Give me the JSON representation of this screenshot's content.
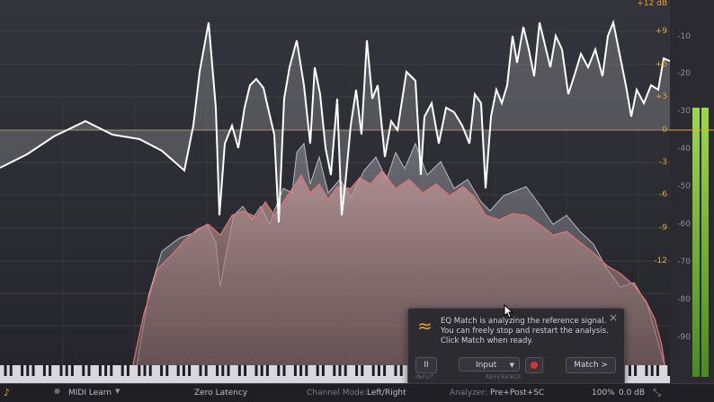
{
  "eq_scale": [
    "+12 dB",
    "+9",
    "+6",
    "+3",
    "0",
    "-3",
    "-6",
    "-9",
    "-12"
  ],
  "spectrum_scale": [
    "-10",
    "-20",
    "-30",
    "-40",
    "-50",
    "-60",
    "-70",
    "-80",
    "-90"
  ],
  "popup": {
    "message": "EQ Match is analyzing the reference signal. You can freely stop and restart the analysis. Click Match when ready.",
    "pause_label": "II",
    "input_select_value": "Input",
    "match_label": "Match >",
    "input_caption": "INPUT",
    "reference_caption": "REFERENCE",
    "icon": "approx-wave-icon",
    "close": "×",
    "accent_color": "#e6a52e",
    "record_color": "#e03030"
  },
  "statusbar": {
    "midi_learn": "MIDI Learn",
    "latency": "Zero Latency",
    "channel_mode_label": "Channel Mode:",
    "channel_mode_value": "Left/Right",
    "analyzer_label": "Analyzer:",
    "analyzer_value": "Pre+Post+SC",
    "zoom": "100%",
    "gain": "0.0 dB"
  },
  "colors": {
    "accent": "#e6a52e",
    "eq_curve": "#ffffff",
    "reference_spectrum": "#e07070",
    "meter": "#7ec13a"
  }
}
